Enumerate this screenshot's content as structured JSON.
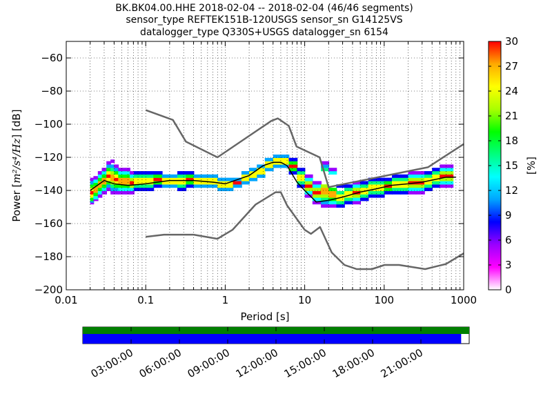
{
  "chart_data": [
    {
      "type": "heatmap",
      "title_lines": [
        "BK.BK04.00.HHE   2018-02-04 -- 2018-02-04  (46/46 segments)",
        "sensor_type REFTEK151B-120USGS sensor_sn G14125VS",
        "datalogger_type Q330S+USGS datalogger_sn 6154"
      ],
      "xlabel": "Period [s]",
      "ylabel_prefix": "Power [",
      "ylabel_math": "m²/s⁴/Hz",
      "ylabel_suffix": "] [dB]",
      "x_scale": "log",
      "xlim": [
        0.01,
        1000
      ],
      "ylim": [
        -200,
        -50
      ],
      "x_ticks": [
        0.01,
        0.1,
        1,
        10,
        100,
        1000
      ],
      "x_tick_labels": [
        "0.01",
        "0.1",
        "1",
        "10",
        "100",
        "1000"
      ],
      "y_ticks": [
        -200,
        -180,
        -160,
        -140,
        -120,
        -100,
        -80,
        -60
      ],
      "y_tick_labels": [
        "−200",
        "−180",
        "−160",
        "−140",
        "−120",
        "−100",
        "−80",
        "−60"
      ],
      "grid": "dotted",
      "colorbar": {
        "label": "[%]",
        "range": [
          0,
          30
        ],
        "ticks": [
          0,
          3,
          6,
          9,
          12,
          15,
          18,
          21,
          24,
          27,
          30
        ],
        "colormap": [
          "#ffffff",
          "#ff00ff",
          "#9a00ff",
          "#0000ff",
          "#00a5ff",
          "#00ffff",
          "#00ff7f",
          "#00ff00",
          "#aaff00",
          "#ffff00",
          "#ffaa00",
          "#ff0000"
        ]
      },
      "noise_model_high": {
        "name": "NHNM",
        "color": "#666666",
        "points": [
          [
            0.1,
            -91.5
          ],
          [
            0.22,
            -97.4
          ],
          [
            0.32,
            -110.5
          ],
          [
            0.8,
            -120
          ],
          [
            3.8,
            -98
          ],
          [
            4.6,
            -96.5
          ],
          [
            6.3,
            -101
          ],
          [
            7.9,
            -113.5
          ],
          [
            15.4,
            -120
          ],
          [
            20,
            -138
          ],
          [
            354.8,
            -126
          ],
          [
            1000,
            -112
          ]
        ]
      },
      "noise_model_low": {
        "name": "NLNM",
        "color": "#666666",
        "points": [
          [
            0.1,
            -168
          ],
          [
            0.17,
            -166.7
          ],
          [
            0.4,
            -166.7
          ],
          [
            0.8,
            -169.2
          ],
          [
            1.24,
            -163.7
          ],
          [
            2.4,
            -148.6
          ],
          [
            4.3,
            -141.1
          ],
          [
            5,
            -141.1
          ],
          [
            6,
            -149
          ],
          [
            10,
            -163.8
          ],
          [
            12,
            -166.2
          ],
          [
            15.6,
            -162.1
          ],
          [
            21.9,
            -177.5
          ],
          [
            31.6,
            -185
          ],
          [
            45,
            -187.5
          ],
          [
            70,
            -187.5
          ],
          [
            101,
            -185
          ],
          [
            154,
            -185
          ],
          [
            328,
            -187.5
          ],
          [
            600,
            -184.4
          ],
          [
            1000,
            -178
          ]
        ]
      },
      "mode_line": {
        "name": "mode",
        "color": "#000000",
        "points": [
          [
            0.02,
            -140
          ],
          [
            0.03,
            -134
          ],
          [
            0.04,
            -136
          ],
          [
            0.06,
            -137
          ],
          [
            0.1,
            -136
          ],
          [
            0.2,
            -134
          ],
          [
            0.4,
            -134
          ],
          [
            0.7,
            -135
          ],
          [
            1,
            -136
          ],
          [
            2,
            -131
          ],
          [
            3,
            -125
          ],
          [
            4,
            -123
          ],
          [
            5,
            -123
          ],
          [
            6,
            -125
          ],
          [
            8,
            -135
          ],
          [
            10,
            -140
          ],
          [
            14,
            -147
          ],
          [
            20,
            -146
          ],
          [
            30,
            -144
          ],
          [
            50,
            -141
          ],
          [
            80,
            -139
          ],
          [
            120,
            -137
          ],
          [
            200,
            -136
          ],
          [
            300,
            -135
          ],
          [
            600,
            -132
          ],
          [
            800,
            -132
          ]
        ]
      },
      "density_rows": [
        {
          "p": 0.02,
          "y": [
            -148,
            -147,
            -146,
            -144,
            -142,
            -140,
            -138,
            -136,
            -134
          ]
        },
        {
          "p": 0.022,
          "y": [
            -146,
            -145,
            -143,
            -141,
            -139,
            -137,
            -135,
            -133
          ]
        },
        {
          "p": 0.025,
          "y": [
            -144,
            -142,
            -140,
            -138,
            -136,
            -134,
            -132,
            -130
          ]
        },
        {
          "p": 0.028,
          "y": [
            -142,
            -140,
            -138,
            -136,
            -134,
            -132,
            -130,
            -128
          ]
        },
        {
          "p": 0.032,
          "y": [
            -140,
            -138,
            -136,
            -134,
            -132,
            -130,
            -128,
            -126,
            -124
          ]
        },
        {
          "p": 0.036,
          "y": [
            -142,
            -140,
            -138,
            -136,
            -134,
            -132,
            -130,
            -128,
            -126,
            -123
          ]
        },
        {
          "p": 0.04,
          "y": [
            -142,
            -140,
            -138,
            -136,
            -134,
            -132,
            -130,
            -128,
            -126
          ]
        },
        {
          "p": 0.045,
          "y": [
            -142,
            -140,
            -138,
            -136,
            -134,
            -132,
            -130,
            -128
          ]
        },
        {
          "p": 0.05,
          "y": [
            -142,
            -140,
            -138,
            -136,
            -134,
            -132,
            -130,
            -128
          ]
        },
        {
          "p": 0.056,
          "y": [
            -142,
            -140,
            -138,
            -136,
            -134,
            -132,
            -130,
            -128
          ]
        },
        {
          "p": 0.063,
          "y": [
            -142,
            -140,
            -138,
            -136,
            -134,
            -132,
            -130
          ]
        },
        {
          "p": 0.071,
          "y": [
            -140,
            -138,
            -136,
            -134,
            -132,
            -130
          ]
        },
        {
          "p": 0.08,
          "y": [
            -140,
            -138,
            -136,
            -134,
            -132,
            -130
          ]
        },
        {
          "p": 0.09,
          "y": [
            -140,
            -138,
            -136,
            -134,
            -132,
            -130
          ]
        },
        {
          "p": 0.1,
          "y": [
            -140,
            -138,
            -136,
            -134,
            -132,
            -130
          ]
        },
        {
          "p": 0.125,
          "y": [
            -138,
            -136,
            -134,
            -132,
            -130
          ]
        },
        {
          "p": 0.16,
          "y": [
            -138,
            -136,
            -134,
            -132
          ]
        },
        {
          "p": 0.2,
          "y": [
            -138,
            -136,
            -134,
            -132
          ]
        },
        {
          "p": 0.25,
          "y": [
            -140,
            -138,
            -136,
            -134,
            -132,
            -130
          ]
        },
        {
          "p": 0.32,
          "y": [
            -138,
            -136,
            -134,
            -132,
            -130
          ]
        },
        {
          "p": 0.4,
          "y": [
            -138,
            -136,
            -134,
            -132
          ]
        },
        {
          "p": 0.5,
          "y": [
            -138,
            -136,
            -134,
            -132
          ]
        },
        {
          "p": 0.63,
          "y": [
            -138,
            -136,
            -134,
            -132
          ]
        },
        {
          "p": 0.8,
          "y": [
            -140,
            -138,
            -136,
            -134
          ]
        },
        {
          "p": 1.0,
          "y": [
            -140,
            -138,
            -136,
            -134
          ]
        },
        {
          "p": 1.25,
          "y": [
            -138,
            -136,
            -134
          ]
        },
        {
          "p": 1.6,
          "y": [
            -136,
            -134,
            -132,
            -130
          ]
        },
        {
          "p": 2.0,
          "y": [
            -134,
            -132,
            -130,
            -128
          ]
        },
        {
          "p": 2.5,
          "y": [
            -132,
            -130,
            -128,
            -126
          ]
        },
        {
          "p": 3.15,
          "y": [
            -128,
            -126,
            -124,
            -122
          ]
        },
        {
          "p": 4.0,
          "y": [
            -126,
            -124,
            -122,
            -120
          ]
        },
        {
          "p": 5.0,
          "y": [
            -126,
            -124,
            -122,
            -120
          ]
        },
        {
          "p": 6.3,
          "y": [
            -130,
            -128,
            -126,
            -124,
            -122
          ]
        },
        {
          "p": 8.0,
          "y": [
            -138,
            -136,
            -134,
            -132,
            -130,
            -128
          ]
        },
        {
          "p": 10.0,
          "y": [
            -144,
            -142,
            -140,
            -138,
            -136,
            -134,
            -132
          ]
        },
        {
          "p": 12.5,
          "y": [
            -148,
            -146,
            -144,
            -142,
            -140,
            -138,
            -136
          ]
        },
        {
          "p": 16.0,
          "y": [
            -150,
            -148,
            -146,
            -144,
            -142,
            -140,
            -138,
            -128,
            -126,
            -124
          ]
        },
        {
          "p": 20.0,
          "y": [
            -150,
            -148,
            -146,
            -144,
            -142,
            -140,
            -130,
            -128
          ]
        },
        {
          "p": 25.0,
          "y": [
            -150,
            -148,
            -146,
            -144,
            -142,
            -138
          ]
        },
        {
          "p": 31.5,
          "y": [
            -148,
            -146,
            -144,
            -142,
            -140,
            -138
          ]
        },
        {
          "p": 40.0,
          "y": [
            -148,
            -146,
            -144,
            -142,
            -140,
            -138,
            -136
          ]
        },
        {
          "p": 50.0,
          "y": [
            -146,
            -144,
            -142,
            -140,
            -138,
            -136
          ]
        },
        {
          "p": 63.0,
          "y": [
            -144,
            -142,
            -140,
            -138,
            -136,
            -134
          ]
        },
        {
          "p": 80.0,
          "y": [
            -144,
            -142,
            -140,
            -138,
            -136,
            -134
          ]
        },
        {
          "p": 100.0,
          "y": [
            -142,
            -140,
            -138,
            -136,
            -134
          ]
        },
        {
          "p": 125.0,
          "y": [
            -142,
            -140,
            -138,
            -136,
            -134,
            -132
          ]
        },
        {
          "p": 160.0,
          "y": [
            -142,
            -140,
            -138,
            -136,
            -134,
            -132
          ]
        },
        {
          "p": 200.0,
          "y": [
            -142,
            -140,
            -138,
            -136,
            -134,
            -132,
            -130
          ]
        },
        {
          "p": 250.0,
          "y": [
            -142,
            -140,
            -138,
            -136,
            -134,
            -132,
            -130
          ]
        },
        {
          "p": 320.0,
          "y": [
            -140,
            -138,
            -136,
            -134,
            -132,
            -130
          ]
        },
        {
          "p": 400.0,
          "y": [
            -138,
            -136,
            -134,
            -132,
            -130,
            -128
          ]
        },
        {
          "p": 500.0,
          "y": [
            -138,
            -136,
            -134,
            -132,
            -130,
            -128,
            -126
          ]
        },
        {
          "p": 600.0,
          "y": [
            -138,
            -136,
            -134,
            -132,
            -130,
            -128,
            -126
          ]
        }
      ]
    },
    {
      "type": "timeline",
      "time_tick_labels": [
        "03:00:00",
        "06:00:00",
        "09:00:00",
        "12:00:00",
        "15:00:00",
        "18:00:00",
        "21:00:00"
      ],
      "time_range_hours": [
        0,
        24
      ],
      "data_coverage_hours": [
        0,
        24
      ],
      "segments_coverage_hours": [
        0,
        23.5
      ],
      "colors": {
        "data": "#008000",
        "segments": "#0000ff"
      }
    }
  ]
}
